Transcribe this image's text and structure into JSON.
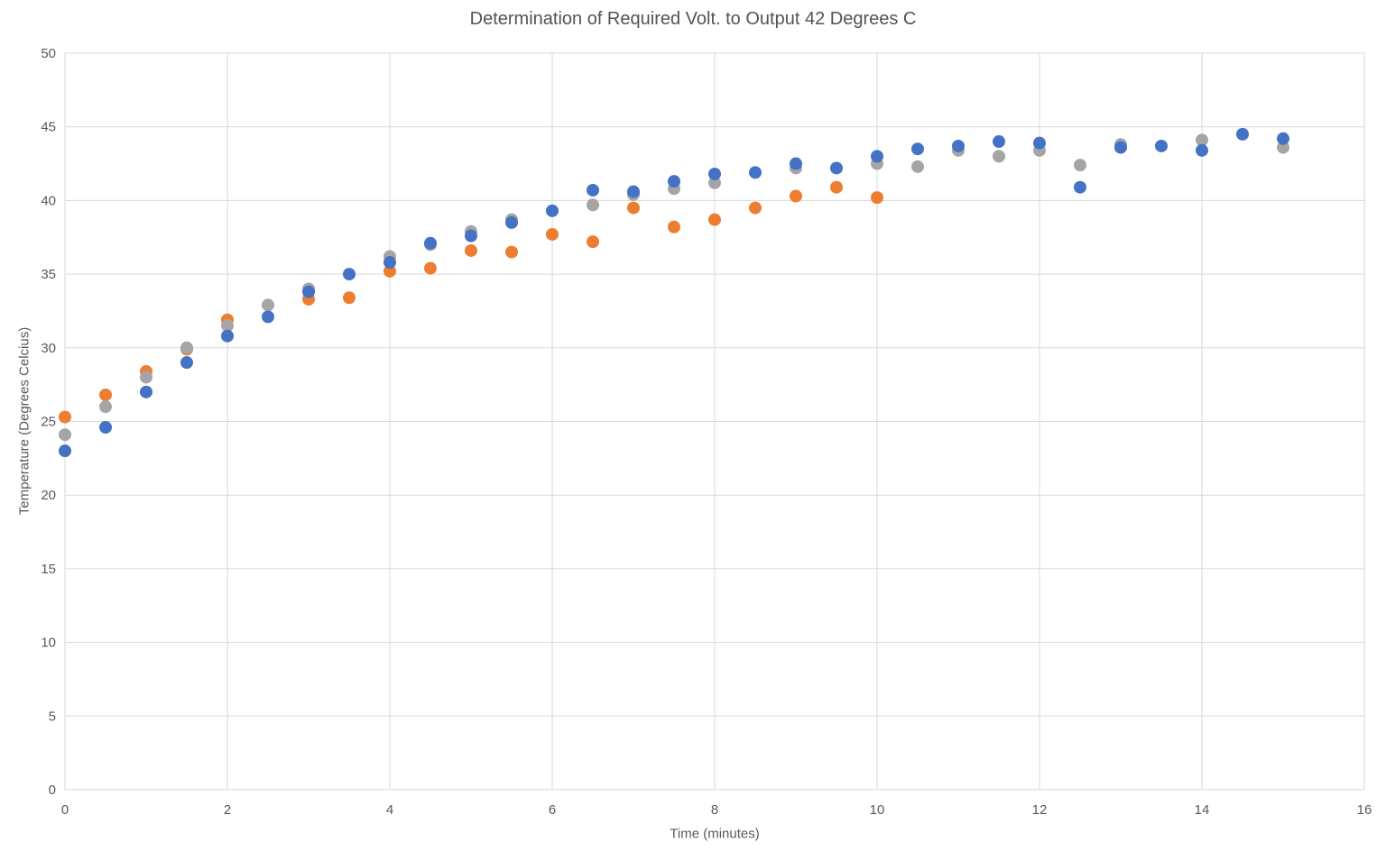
{
  "chart_data": {
    "type": "scatter",
    "title": "Determination of Required Volt. to Output 42 Degrees C",
    "xlabel": "Time (minutes)",
    "ylabel": "Temperature (Degrees Celcius)",
    "xlim": [
      0,
      16
    ],
    "ylim": [
      0,
      50
    ],
    "xticks": [
      0,
      2,
      4,
      6,
      8,
      10,
      12,
      14,
      16
    ],
    "yticks": [
      0,
      5,
      10,
      15,
      20,
      25,
      30,
      35,
      40,
      45,
      50
    ],
    "grid": true,
    "legend": "none",
    "grid_color": "#D9D9D9",
    "tick_color": "#595959",
    "marker_radius": 7,
    "x": [
      0,
      0.5,
      1,
      1.5,
      2,
      2.5,
      3,
      3.5,
      4,
      4.5,
      5,
      5.5,
      6,
      6.5,
      7,
      7.5,
      8,
      8.5,
      9,
      9.5,
      10,
      10.5,
      11,
      11.5,
      12,
      12.5,
      13,
      13.5,
      14,
      14.5,
      15
    ],
    "series": [
      {
        "name": "orange",
        "color": "#ED7D31",
        "values": [
          25.3,
          26.8,
          28.4,
          29.9,
          31.9,
          null,
          33.3,
          33.4,
          35.2,
          35.4,
          36.6,
          36.5,
          37.7,
          37.2,
          39.5,
          38.2,
          38.7,
          39.5,
          40.3,
          40.9,
          40.2,
          null,
          null,
          null,
          null,
          null,
          null,
          null,
          null,
          null,
          null
        ]
      },
      {
        "name": "gray",
        "color": "#A5A5A5",
        "values": [
          24.1,
          26.0,
          28.0,
          30.0,
          31.5,
          32.9,
          34.0,
          null,
          36.2,
          37.0,
          37.9,
          38.7,
          null,
          39.7,
          40.4,
          40.8,
          41.2,
          null,
          42.2,
          null,
          42.5,
          42.3,
          43.4,
          43.0,
          43.4,
          42.4,
          43.8,
          null,
          44.1,
          null,
          43.6
        ]
      },
      {
        "name": "blue",
        "color": "#4472C4",
        "values": [
          23.0,
          24.6,
          27.0,
          29.0,
          30.8,
          32.1,
          33.8,
          35.0,
          35.8,
          37.1,
          37.6,
          38.5,
          39.3,
          40.7,
          40.6,
          41.3,
          41.8,
          41.9,
          42.5,
          42.2,
          43.0,
          43.5,
          43.7,
          44.0,
          43.9,
          40.9,
          43.6,
          43.7,
          43.4,
          44.5,
          44.2
        ]
      }
    ]
  }
}
